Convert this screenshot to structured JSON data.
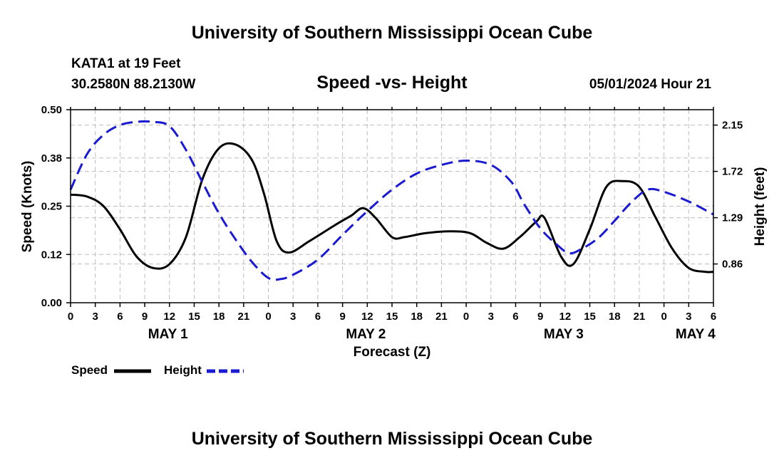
{
  "header": {
    "title": "University of Southern Mississippi Ocean Cube",
    "station": "KATA1 at 19 Feet",
    "coords": "30.2580N  88.2130W",
    "datetime": "05/01/2024 Hour 21"
  },
  "footer": {
    "title": "University of Southern Mississippi Ocean Cube"
  },
  "colors": {
    "speed": "#000000",
    "height": "#1a1ad0",
    "grid": "#bdbdbd"
  },
  "chart_data": {
    "type": "line",
    "title": "Speed -vs- Height",
    "xlabel": "Forecast (Z)",
    "ylabel_left": "Speed (Knots)",
    "ylabel_right": "Height (feet)",
    "xlim_hours": [
      0,
      78
    ],
    "ylim_left": [
      0,
      0.5
    ],
    "ylim_right": [
      0.5,
      2.2931
    ],
    "left_ticks": [
      {
        "value": 0.0,
        "label": "0.00"
      },
      {
        "value": 0.125,
        "label": "0.12"
      },
      {
        "value": 0.25,
        "label": "0.25"
      },
      {
        "value": 0.375,
        "label": "0.38"
      },
      {
        "value": 0.5,
        "label": "0.50"
      }
    ],
    "right_ticks": [
      {
        "value": 0.86,
        "label": "0.86"
      },
      {
        "value": 1.29,
        "label": "1.29"
      },
      {
        "value": 1.72,
        "label": "1.72"
      },
      {
        "value": 2.15,
        "label": "2.15"
      }
    ],
    "x_ticks": [
      {
        "hour": 0,
        "label": "0"
      },
      {
        "hour": 3,
        "label": "3"
      },
      {
        "hour": 6,
        "label": "6"
      },
      {
        "hour": 9,
        "label": "9"
      },
      {
        "hour": 12,
        "label": "12"
      },
      {
        "hour": 15,
        "label": "15"
      },
      {
        "hour": 18,
        "label": "18"
      },
      {
        "hour": 21,
        "label": "21"
      },
      {
        "hour": 24,
        "label": "0"
      },
      {
        "hour": 27,
        "label": "3"
      },
      {
        "hour": 30,
        "label": "6"
      },
      {
        "hour": 33,
        "label": "9"
      },
      {
        "hour": 36,
        "label": "12"
      },
      {
        "hour": 39,
        "label": "15"
      },
      {
        "hour": 42,
        "label": "18"
      },
      {
        "hour": 45,
        "label": "21"
      },
      {
        "hour": 48,
        "label": "0"
      },
      {
        "hour": 51,
        "label": "3"
      },
      {
        "hour": 54,
        "label": "6"
      },
      {
        "hour": 57,
        "label": "9"
      },
      {
        "hour": 60,
        "label": "12"
      },
      {
        "hour": 63,
        "label": "15"
      },
      {
        "hour": 66,
        "label": "18"
      },
      {
        "hour": 69,
        "label": "21"
      },
      {
        "hour": 72,
        "label": "0"
      },
      {
        "hour": 75,
        "label": "3"
      },
      {
        "hour": 78,
        "label": "6"
      }
    ],
    "day_labels": [
      {
        "hour": 12,
        "label": "MAY 1"
      },
      {
        "hour": 36,
        "label": "MAY 2"
      },
      {
        "hour": 60,
        "label": "MAY 3"
      },
      {
        "hour": 76,
        "label": "MAY 4"
      }
    ],
    "series": [
      {
        "name": "Speed",
        "axis": "left",
        "style": "solid",
        "points": [
          [
            0,
            0.28
          ],
          [
            2,
            0.275
          ],
          [
            4,
            0.25
          ],
          [
            6,
            0.19
          ],
          [
            8,
            0.12
          ],
          [
            10,
            0.09
          ],
          [
            12,
            0.1
          ],
          [
            14,
            0.17
          ],
          [
            16,
            0.32
          ],
          [
            18,
            0.4
          ],
          [
            20,
            0.41
          ],
          [
            22,
            0.37
          ],
          [
            23.5,
            0.28
          ],
          [
            25,
            0.16
          ],
          [
            26.5,
            0.13
          ],
          [
            29,
            0.16
          ],
          [
            32,
            0.2
          ],
          [
            34,
            0.225
          ],
          [
            35.5,
            0.245
          ],
          [
            37,
            0.22
          ],
          [
            39,
            0.17
          ],
          [
            40.5,
            0.17
          ],
          [
            43,
            0.18
          ],
          [
            46,
            0.185
          ],
          [
            48.5,
            0.18
          ],
          [
            50.5,
            0.155
          ],
          [
            52.5,
            0.14
          ],
          [
            54.5,
            0.17
          ],
          [
            56.5,
            0.21
          ],
          [
            57.5,
            0.22
          ],
          [
            59.5,
            0.12
          ],
          [
            61,
            0.1
          ],
          [
            63,
            0.19
          ],
          [
            65,
            0.3
          ],
          [
            67,
            0.315
          ],
          [
            69,
            0.3
          ],
          [
            71,
            0.22
          ],
          [
            73,
            0.14
          ],
          [
            75,
            0.09
          ],
          [
            77,
            0.08
          ],
          [
            78,
            0.08
          ]
        ]
      },
      {
        "name": "Height",
        "axis": "right",
        "style": "dashed",
        "points": [
          [
            0,
            1.55
          ],
          [
            2,
            1.88
          ],
          [
            4,
            2.06
          ],
          [
            6,
            2.15
          ],
          [
            8,
            2.18
          ],
          [
            10,
            2.18
          ],
          [
            12,
            2.14
          ],
          [
            14,
            1.92
          ],
          [
            16,
            1.62
          ],
          [
            18,
            1.33
          ],
          [
            20,
            1.09
          ],
          [
            22,
            0.88
          ],
          [
            24,
            0.73
          ],
          [
            25.5,
            0.72
          ],
          [
            27,
            0.76
          ],
          [
            30,
            0.9
          ],
          [
            33,
            1.13
          ],
          [
            36,
            1.35
          ],
          [
            39,
            1.55
          ],
          [
            42,
            1.7
          ],
          [
            45,
            1.78
          ],
          [
            48,
            1.82
          ],
          [
            51,
            1.78
          ],
          [
            53.5,
            1.62
          ],
          [
            55,
            1.42
          ],
          [
            57,
            1.19
          ],
          [
            59,
            1.04
          ],
          [
            60.5,
            0.96
          ],
          [
            62,
            1.0
          ],
          [
            64,
            1.1
          ],
          [
            66,
            1.26
          ],
          [
            68,
            1.43
          ],
          [
            70,
            1.55
          ],
          [
            72,
            1.53
          ],
          [
            75,
            1.44
          ],
          [
            78,
            1.32
          ]
        ]
      }
    ],
    "legend": [
      {
        "name": "Speed",
        "style": "solid"
      },
      {
        "name": "Height",
        "style": "dashed"
      }
    ]
  }
}
